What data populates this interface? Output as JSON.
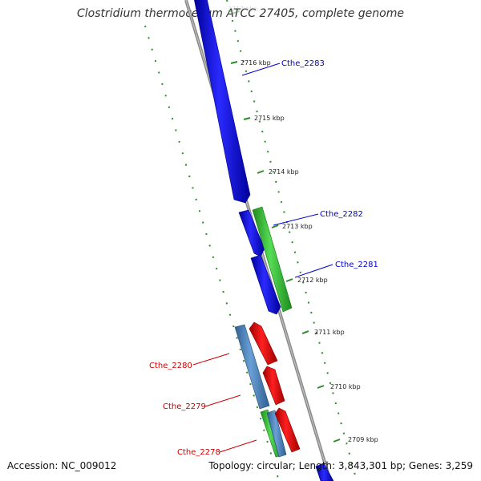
{
  "title": "Clostridium thermocellum ATCC 27405, complete genome",
  "accession": "Accession: NC_009012",
  "summary": "Topology: circular; Length: 3,843,301 bp; Genes: 3,259",
  "ticks": [
    {
      "label": "2717 kbp",
      "faded": true
    },
    {
      "label": "2716 kbp"
    },
    {
      "label": "2715 kbp"
    },
    {
      "label": "2714 kbp"
    },
    {
      "label": "2713 kbp"
    },
    {
      "label": "2712 kbp"
    },
    {
      "label": "2711 kbp"
    },
    {
      "label": "2710 kbp"
    },
    {
      "label": "2709 kbp"
    }
  ],
  "genes": [
    {
      "name": "Cthe_2283",
      "color": "#0000cc"
    },
    {
      "name": "Cthe_2282",
      "color": "#0000cc"
    },
    {
      "name": "Cthe_2281",
      "color": "#0000cc"
    },
    {
      "name": "Cthe_2280",
      "color": "#cc0000"
    },
    {
      "name": "Cthe_2279",
      "color": "#cc0000"
    },
    {
      "name": "Cthe_2278",
      "color": "#cc0000"
    }
  ],
  "colors": {
    "backbone": "#8a8a8a",
    "tick": "#2e8b2e",
    "forward_cds": "#1a1aee",
    "reverse_cds": "#ee1111",
    "rna_green": "#33bb33",
    "steel_blue": "#4f86c0",
    "forward_label": "#0000cc",
    "reverse_label": "#cc0000"
  }
}
